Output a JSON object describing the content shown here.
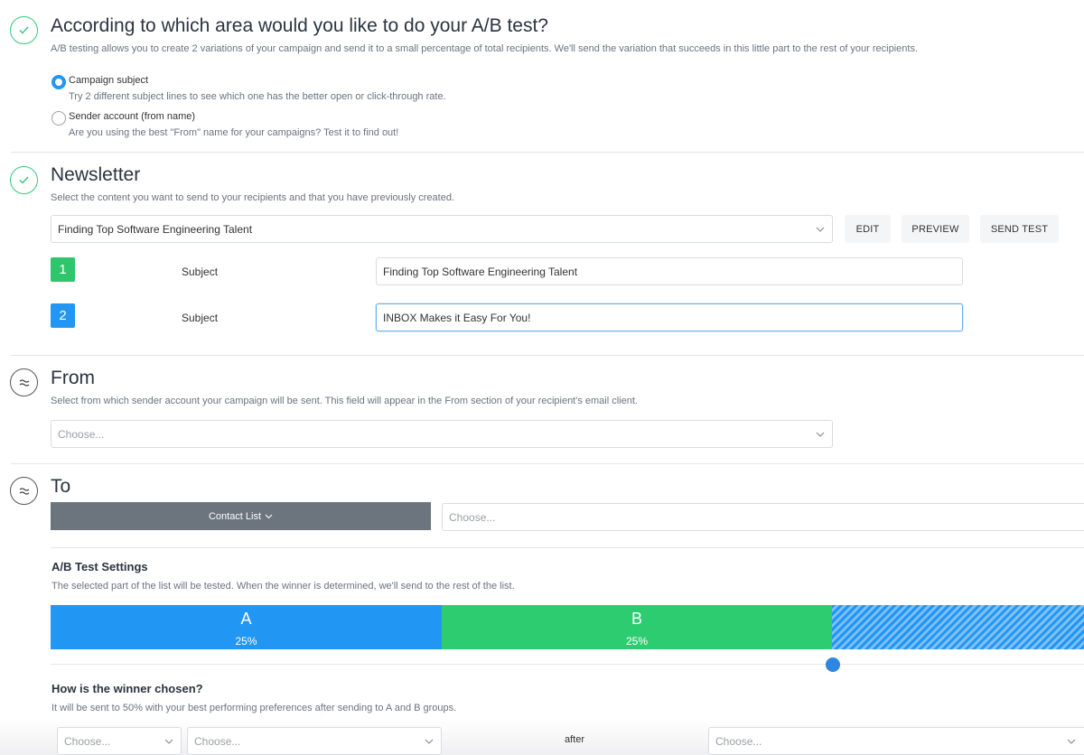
{
  "ab_area": {
    "title": "According to which area would you like to do your A/B test?",
    "description": "A/B testing allows you to create 2 variations of your campaign and send it to a small percentage of total recipients. We'll send the variation that succeeds in this little part to the rest of your recipients.",
    "options": [
      {
        "label": "Campaign subject",
        "help": "Try 2 different subject lines to see which one has the better open or click-through rate.",
        "selected": true
      },
      {
        "label": "Sender account (from name)",
        "help": "Are you using the best \"From\" name for your campaigns? Test it to find out!",
        "selected": false
      }
    ]
  },
  "newsletter": {
    "title": "Newsletter",
    "description": "Select the content you want to send to your recipients and that you have previously created.",
    "selected_content": "Finding Top Software Engineering Talent",
    "edit_label": "EDIT",
    "preview_label": "PREVIEW",
    "send_test_label": "SEND TEST",
    "variants": [
      {
        "number": "1",
        "label": "Subject",
        "value": "Finding Top Software Engineering Talent",
        "color": "#2ec56b"
      },
      {
        "number": "2",
        "label": "Subject",
        "value": "INBOX Makes it Easy For You!",
        "color": "#2196f3"
      }
    ]
  },
  "from": {
    "title": "From",
    "description": "Select from which sender account your campaign will be sent. This field will appear in the From section of your recipient's email client.",
    "placeholder": "Choose..."
  },
  "to": {
    "title": "To",
    "list_type_label": "Contact List",
    "placeholder": "Choose..."
  },
  "ab_settings": {
    "title": "A/B Test Settings",
    "description": "The selected part of the list will be tested. When the winner is determined, we'll send to the rest of the list.",
    "group_a": {
      "letter": "A",
      "percent": "25%",
      "color": "#2196f3"
    },
    "group_b": {
      "letter": "B",
      "percent": "25%",
      "color": "#2ecc71"
    },
    "tested_fraction": 0.5
  },
  "winner": {
    "title": "How is the winner chosen?",
    "description": "It will be sent to 50% with your best performing preferences after sending to A and B groups.",
    "criteria_placeholder": "Choose...",
    "metric_placeholder": "Choose...",
    "after_label": "after",
    "duration_placeholder": "Choose..."
  }
}
